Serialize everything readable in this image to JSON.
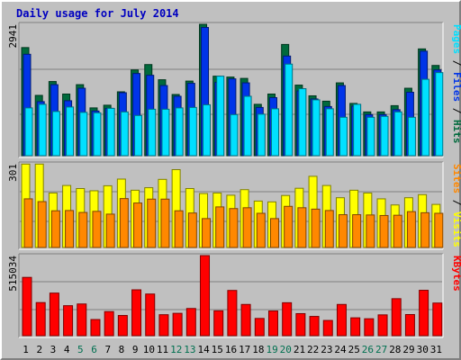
{
  "title": "Daily usage for July 2014",
  "colors": {
    "hits": "#006a3c",
    "files": "#0034e8",
    "pages": "#00e0ff",
    "visits": "#ffff00",
    "sites": "#ff8800",
    "kbytes": "#ff0000",
    "weekend_label": "#007050",
    "weekday_label": "#000000",
    "panel_bg": "#c0c0c0",
    "gridline": "#808080"
  },
  "chart_data": [
    {
      "type": "bar",
      "panel": "hits-files-pages",
      "categories": [
        "1",
        "2",
        "3",
        "4",
        "5",
        "6",
        "7",
        "8",
        "9",
        "10",
        "11",
        "12",
        "13",
        "14",
        "15",
        "16",
        "17",
        "18",
        "19",
        "20",
        "21",
        "22",
        "23",
        "24",
        "25",
        "26",
        "27",
        "28",
        "29",
        "30",
        "31"
      ],
      "weekend_categories": [
        "5",
        "6",
        "12",
        "13",
        "19",
        "20",
        "26",
        "27"
      ],
      "y_tick_label": "2941",
      "ylim": [
        0,
        2941
      ],
      "legend": [
        {
          "key": "pages",
          "text": "Pages"
        },
        {
          "key": "sep",
          "text": " / "
        },
        {
          "key": "files",
          "text": "Files"
        },
        {
          "key": "sep",
          "text": " / "
        },
        {
          "key": "hits",
          "text": "Hits"
        }
      ],
      "series": [
        {
          "key": "hits",
          "name": "Hits",
          "values": [
            2420,
            1350,
            1660,
            1380,
            1590,
            1070,
            1130,
            1430,
            1920,
            2040,
            1700,
            1370,
            1670,
            2940,
            1780,
            1760,
            1730,
            1150,
            1380,
            2490,
            1580,
            1340,
            1220,
            1630,
            1170,
            980,
            980,
            1120,
            1510,
            2390,
            2020
          ]
        },
        {
          "key": "files",
          "name": "Files",
          "values": [
            2270,
            1210,
            1590,
            1230,
            1510,
            1000,
            1060,
            1410,
            1840,
            1800,
            1570,
            1330,
            1620,
            2870,
            1640,
            1720,
            1630,
            1080,
            1300,
            2230,
            1450,
            1270,
            1100,
            1570,
            1110,
            920,
            920,
            1030,
            1420,
            2340,
            1920
          ]
        },
        {
          "key": "pages",
          "name": "Pages",
          "values": [
            1070,
            1150,
            990,
            1090,
            970,
            960,
            1060,
            980,
            900,
            1040,
            1040,
            1070,
            1080,
            1140,
            1780,
            920,
            1330,
            930,
            1050,
            2050,
            1500,
            1250,
            1050,
            860,
            1150,
            860,
            880,
            980,
            860,
            1710,
            1860
          ]
        }
      ]
    },
    {
      "type": "bar",
      "panel": "sites-visits",
      "categories": [
        "1",
        "2",
        "3",
        "4",
        "5",
        "6",
        "7",
        "8",
        "9",
        "10",
        "11",
        "12",
        "13",
        "14",
        "15",
        "16",
        "17",
        "18",
        "19",
        "20",
        "21",
        "22",
        "23",
        "24",
        "25",
        "26",
        "27",
        "28",
        "29",
        "30",
        "31"
      ],
      "y_tick_label": "301",
      "ylim": [
        0,
        301
      ],
      "legend": [
        {
          "key": "sites",
          "text": "Sites"
        },
        {
          "key": "sep",
          "text": " / "
        },
        {
          "key": "visits",
          "text": "Visits"
        }
      ],
      "series": [
        {
          "key": "visits",
          "name": "Visits",
          "values": [
            300,
            300,
            196,
            223,
            212,
            204,
            222,
            246,
            206,
            215,
            245,
            280,
            212,
            194,
            196,
            188,
            208,
            167,
            164,
            187,
            213,
            256,
            223,
            179,
            206,
            196,
            175,
            153,
            179,
            190,
            155
          ]
        },
        {
          "key": "sites",
          "name": "Sites",
          "values": [
            175,
            165,
            132,
            133,
            126,
            130,
            120,
            176,
            160,
            174,
            174,
            132,
            124,
            104,
            146,
            140,
            143,
            123,
            104,
            148,
            143,
            138,
            133,
            118,
            118,
            117,
            115,
            116,
            129,
            125,
            123
          ]
        }
      ]
    },
    {
      "type": "bar",
      "panel": "kbytes",
      "categories": [
        "1",
        "2",
        "3",
        "4",
        "5",
        "6",
        "7",
        "8",
        "9",
        "10",
        "11",
        "12",
        "13",
        "14",
        "15",
        "16",
        "17",
        "18",
        "19",
        "20",
        "21",
        "22",
        "23",
        "24",
        "25",
        "26",
        "27",
        "28",
        "29",
        "30",
        "31"
      ],
      "y_tick_label": "515034",
      "ylim": [
        0,
        515034
      ],
      "legend": [
        {
          "key": "kbytes",
          "text": "KBytes"
        }
      ],
      "series": [
        {
          "key": "kbytes",
          "name": "KBytes",
          "values": [
            375000,
            213000,
            274000,
            193000,
            204000,
            104000,
            155000,
            130000,
            295000,
            268000,
            135000,
            144000,
            175000,
            515034,
            160000,
            291000,
            201000,
            111000,
            159000,
            212000,
            142000,
            124000,
            98000,
            201000,
            115000,
            109000,
            134000,
            238000,
            136000,
            292000,
            210000
          ]
        }
      ]
    }
  ]
}
